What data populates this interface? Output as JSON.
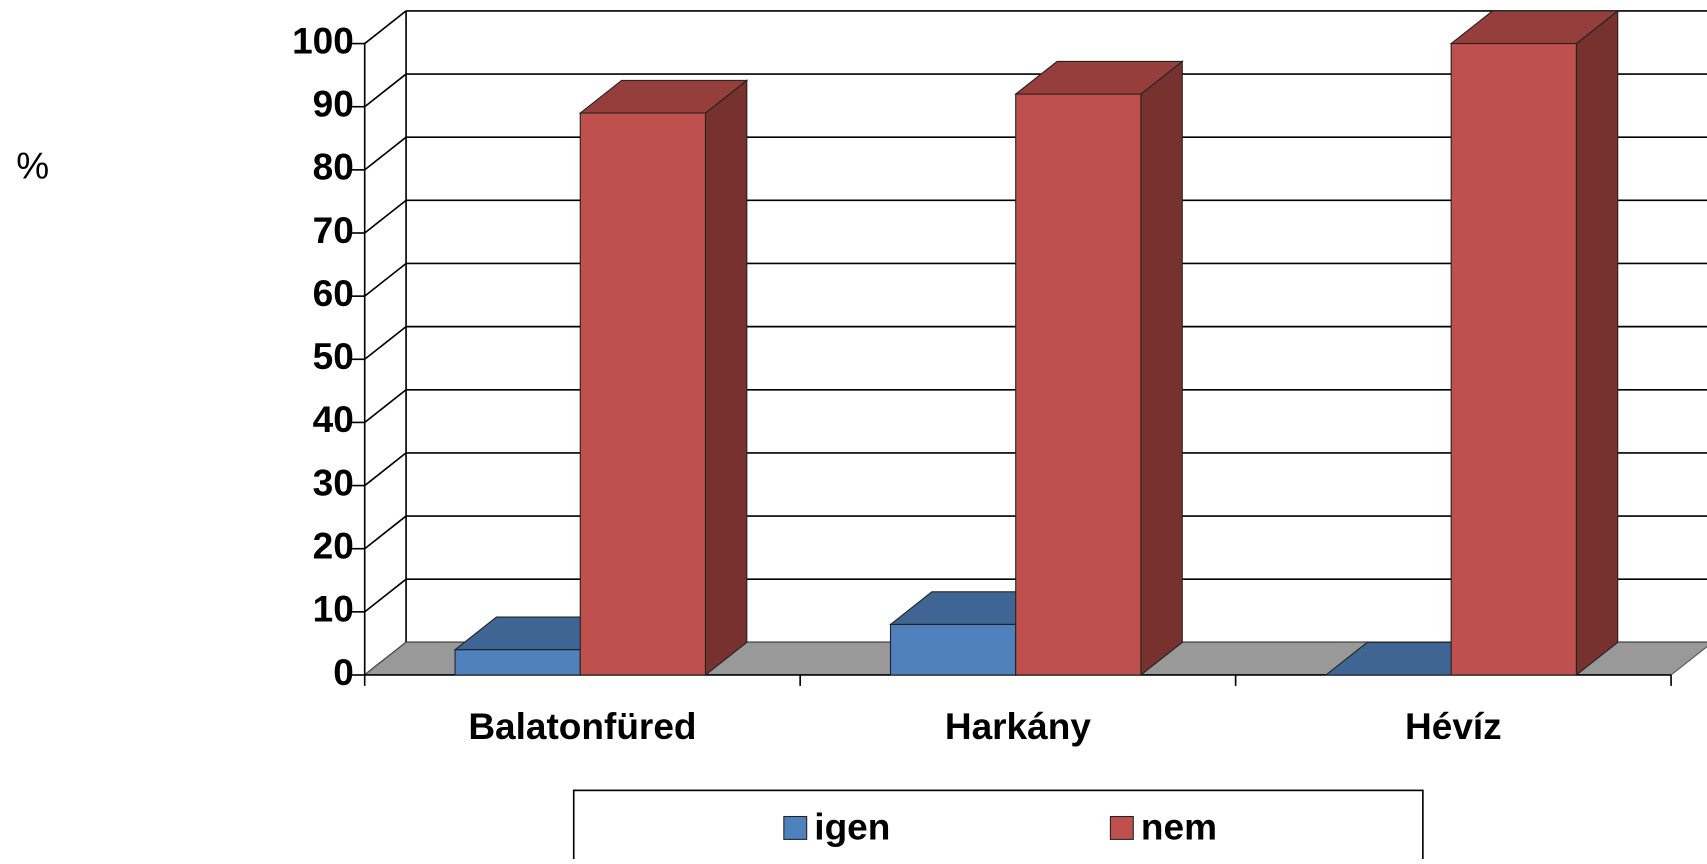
{
  "chart_data": {
    "type": "bar3d",
    "y_label": "%",
    "categories": [
      "Balatonfüred",
      "Harkány",
      "Hévíz"
    ],
    "series": [
      {
        "name": "igen",
        "color": "#4f81bd",
        "values": [
          4,
          8,
          0
        ]
      },
      {
        "name": "nem",
        "color": "#c0504d",
        "values": [
          89,
          92,
          100
        ]
      }
    ],
    "ylim": [
      0,
      100
    ],
    "yticks": [
      0,
      10,
      20,
      30,
      40,
      50,
      60,
      70,
      80,
      90,
      100
    ],
    "grid": true,
    "legend": "bottom"
  }
}
